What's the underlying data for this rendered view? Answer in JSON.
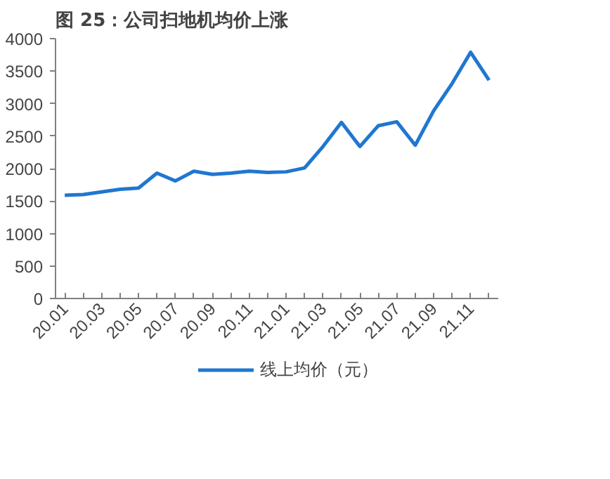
{
  "chart_data": {
    "type": "line",
    "title": "图 25：公司扫地机均价上涨",
    "categories": [
      "20.01",
      null,
      "20.03",
      null,
      "20.05",
      null,
      "20.07",
      null,
      "20.09",
      null,
      "20.11",
      null,
      "21.01",
      null,
      "21.03",
      null,
      "21.05",
      null,
      "21.07",
      null,
      "21.09",
      null,
      "21.11",
      null
    ],
    "series": [
      {
        "name": "线上均价（元）",
        "color": "#1f77d0",
        "values": [
          1590,
          1600,
          1640,
          1680,
          1700,
          1930,
          1810,
          1960,
          1910,
          1930,
          1960,
          1940,
          1950,
          2010,
          2340,
          2710,
          2340,
          2660,
          2720,
          2360,
          2890,
          3310,
          3790,
          3360
        ]
      }
    ],
    "ylim": [
      0,
      4000
    ],
    "yticks": [
      0,
      500,
      1000,
      1500,
      2000,
      2500,
      3000,
      3500,
      4000
    ],
    "grid": false,
    "legend": "bottom",
    "marker": "none",
    "line_style": "solid"
  }
}
